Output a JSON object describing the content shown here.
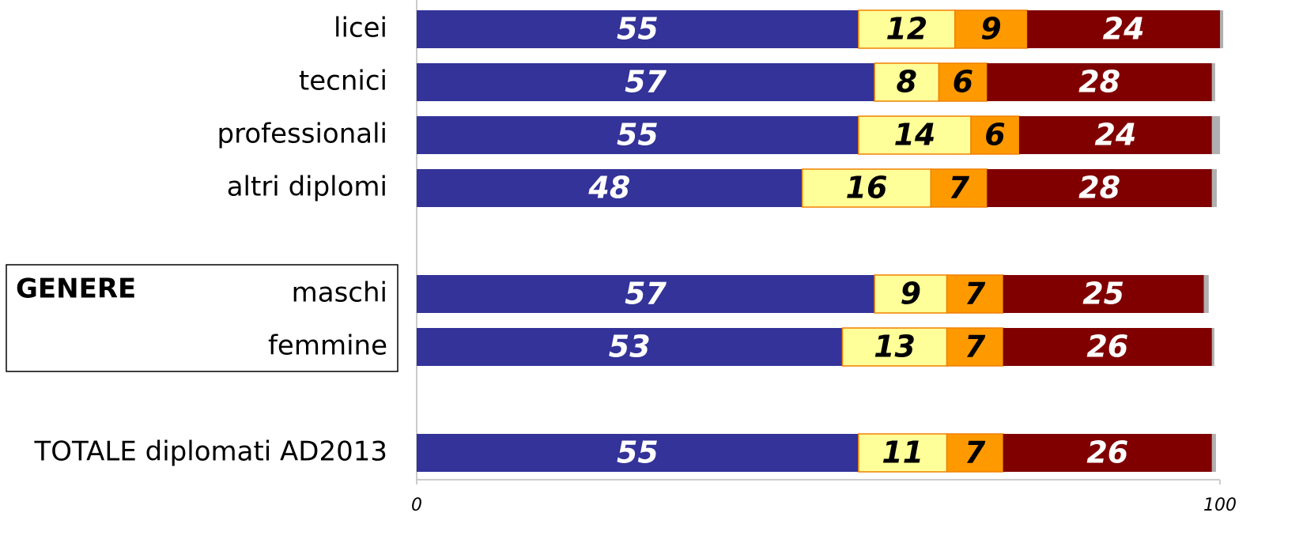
{
  "chart_data": {
    "type": "stacked-bar-horizontal",
    "categories": [
      "licei",
      "tecnici",
      "professionali",
      "altri diplomi",
      null,
      "maschi",
      "femmine",
      null,
      "TOTALE diplomati AD2013"
    ],
    "series": [
      {
        "color": "#333399",
        "label_color": "#ffffff",
        "values": [
          55,
          57,
          55,
          48,
          null,
          57,
          53,
          null,
          55
        ]
      },
      {
        "color": "#ffff99",
        "label_color": "#000000",
        "values": [
          12,
          8,
          14,
          16,
          null,
          9,
          13,
          null,
          11
        ]
      },
      {
        "color": "#ff9900",
        "label_color": "#000000",
        "values": [
          9,
          6,
          6,
          7,
          null,
          7,
          7,
          null,
          7
        ]
      },
      {
        "color": "#800000",
        "label_color": "#ffffff",
        "values": [
          24,
          28,
          24,
          28,
          null,
          25,
          26,
          null,
          26
        ]
      },
      {
        "color": "#b0b0b0",
        "values": [
          0.4,
          0.4,
          1,
          0.6,
          null,
          0.6,
          0.3,
          null,
          0.5
        ]
      }
    ],
    "annotation": "GENERE",
    "xlim": [
      0,
      100
    ],
    "xticks": [
      0,
      100
    ]
  }
}
